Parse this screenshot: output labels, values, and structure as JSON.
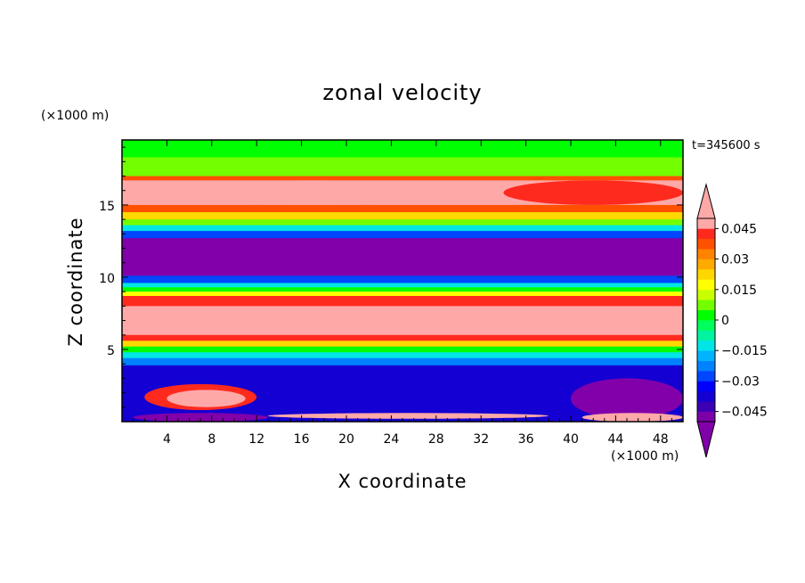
{
  "chart_data": {
    "type": "heatmap",
    "title": "zonal velocity",
    "xlabel": "X coordinate",
    "ylabel": "Z coordinate",
    "x_unit": "(×1000 m)",
    "y_unit": "(×1000 m)",
    "time_label": "t=345600 s",
    "xlim": [
      0,
      50
    ],
    "ylim": [
      0,
      19.5
    ],
    "x_ticks": [
      4,
      8,
      12,
      16,
      20,
      24,
      28,
      32,
      36,
      40,
      44,
      48
    ],
    "y_ticks": [
      5,
      10,
      15
    ],
    "colorbar": {
      "levels": [
        -0.05,
        -0.045,
        -0.04,
        -0.035,
        -0.03,
        -0.025,
        -0.02,
        -0.015,
        -0.01,
        -0.005,
        0,
        0.005,
        0.01,
        0.015,
        0.02,
        0.025,
        0.03,
        0.035,
        0.04,
        0.045,
        0.05
      ],
      "colors": [
        "#7b00a8",
        "#3c00b4",
        "#1400d2",
        "#0000ff",
        "#0046ff",
        "#0082ff",
        "#00b4ff",
        "#00e6e6",
        "#00f5a0",
        "#00ff5a",
        "#00ff00",
        "#73ff00",
        "#c8ff00",
        "#ffff00",
        "#ffd700",
        "#ffaa00",
        "#ff8200",
        "#ff5000",
        "#ff2a1e",
        "#ffa8a8"
      ],
      "over_color": "#ffa8a8",
      "under_color": "#8200aa",
      "tick_labels": [
        "0.045",
        "0.03",
        "0.015",
        "0",
        "−0.015",
        "−0.03",
        "−0.045"
      ],
      "tick_values": [
        0.045,
        0.03,
        0.015,
        0,
        -0.015,
        -0.03,
        -0.045
      ]
    },
    "bands": [
      {
        "z": [
          19.5,
          18.3
        ],
        "value": 0.0
      },
      {
        "z": [
          18.3,
          17.0
        ],
        "value": 0.006
      },
      {
        "z": [
          17.0,
          16.7
        ],
        "value": 0.038
      },
      {
        "z": [
          16.7,
          15.0
        ],
        "value": 0.052
      },
      {
        "z": [
          15.0,
          14.5
        ],
        "value": 0.038
      },
      {
        "z": [
          14.5,
          14.0
        ],
        "value": 0.02
      },
      {
        "z": [
          14.0,
          13.6
        ],
        "value": 0.006
      },
      {
        "z": [
          13.6,
          13.2
        ],
        "value": -0.015
      },
      {
        "z": [
          13.2,
          12.7
        ],
        "value": -0.03
      },
      {
        "z": [
          12.7,
          10.1
        ],
        "value": -0.055
      },
      {
        "z": [
          10.1,
          9.6
        ],
        "value": -0.03
      },
      {
        "z": [
          9.6,
          9.3
        ],
        "value": -0.012
      },
      {
        "z": [
          9.3,
          9.0
        ],
        "value": 0.004
      },
      {
        "z": [
          9.0,
          8.7
        ],
        "value": 0.016
      },
      {
        "z": [
          8.7,
          8.0
        ],
        "value": 0.04
      },
      {
        "z": [
          8.0,
          6.0
        ],
        "value": 0.052
      },
      {
        "z": [
          6.0,
          5.6
        ],
        "value": 0.04
      },
      {
        "z": [
          5.6,
          5.2
        ],
        "value": 0.02
      },
      {
        "z": [
          5.2,
          4.8
        ],
        "value": 0.004
      },
      {
        "z": [
          4.8,
          4.4
        ],
        "value": -0.012
      },
      {
        "z": [
          4.4,
          3.9
        ],
        "value": -0.025
      },
      {
        "z": [
          3.9,
          0.0
        ],
        "value": -0.037
      }
    ],
    "features": [
      {
        "x": [
          0,
          34
        ],
        "z": [
          16.7,
          15.0
        ],
        "value": 0.052
      },
      {
        "x": [
          34,
          50
        ],
        "z": [
          16.7,
          15.0
        ],
        "value": 0.04
      },
      {
        "x": [
          40,
          50
        ],
        "z": [
          3.0,
          0.2
        ],
        "value": -0.052
      },
      {
        "x": [
          2,
          12
        ],
        "z": [
          2.6,
          0.8
        ],
        "value": 0.04
      },
      {
        "x": [
          4,
          11
        ],
        "z": [
          2.2,
          1.0
        ],
        "value": 0.052
      },
      {
        "x": [
          13,
          38
        ],
        "z": [
          0.6,
          0.2
        ],
        "value": 0.045
      },
      {
        "x": [
          1,
          13
        ],
        "z": [
          0.6,
          0.0
        ],
        "value": -0.052
      },
      {
        "x": [
          41,
          50
        ],
        "z": [
          0.6,
          0.0
        ],
        "value": 0.052
      }
    ]
  }
}
